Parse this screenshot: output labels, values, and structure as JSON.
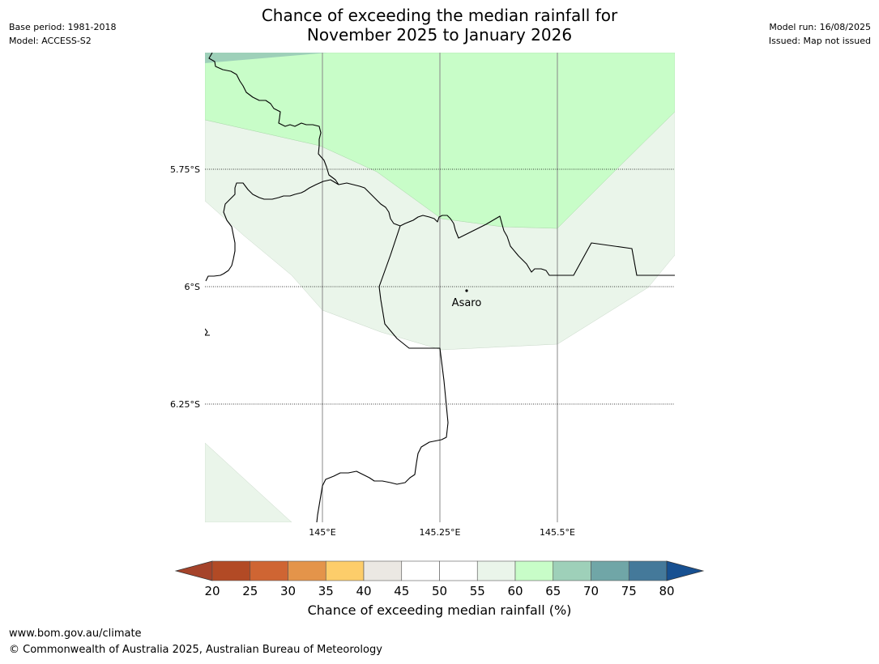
{
  "header": {
    "base_period": "Base period: 1981-2018",
    "model": "Model: ACCESS-S2",
    "title_line1": "Chance of exceeding the median rainfall for",
    "title_line2": "November 2025 to January 2026",
    "model_run": "Model run: 16/08/2025",
    "issued": "Issued: Map not issued"
  },
  "map": {
    "lat_labels": [
      "5.75°S",
      "6°S",
      "6.25°S"
    ],
    "lon_labels": [
      "145°E",
      "145.25°E",
      "145.5°E"
    ],
    "place": "Asaro",
    "colors": {
      "band_55_60": "#eaf5ea",
      "band_60_65": "#c8fdc8",
      "band_65_70": "#9ed0b9"
    }
  },
  "colorbar": {
    "ticks": [
      "20",
      "25",
      "30",
      "35",
      "40",
      "45",
      "50",
      "55",
      "60",
      "65",
      "70",
      "75",
      "80"
    ],
    "colors": [
      "#a5432a",
      "#b24a25",
      "#cf6533",
      "#e4944a",
      "#fdcd6a",
      "#ebe8e3",
      "#ffffff",
      "#ffffff",
      "#eaf5ea",
      "#c8fdc8",
      "#9ed0b9",
      "#70a6a7",
      "#44799a",
      "#175091"
    ],
    "label": "Chance of exceeding median rainfall (%)"
  },
  "footer": {
    "url": "www.bom.gov.au/climate",
    "copyright": "© Commonwealth of Australia 2025, Australian Bureau of Meteorology"
  }
}
